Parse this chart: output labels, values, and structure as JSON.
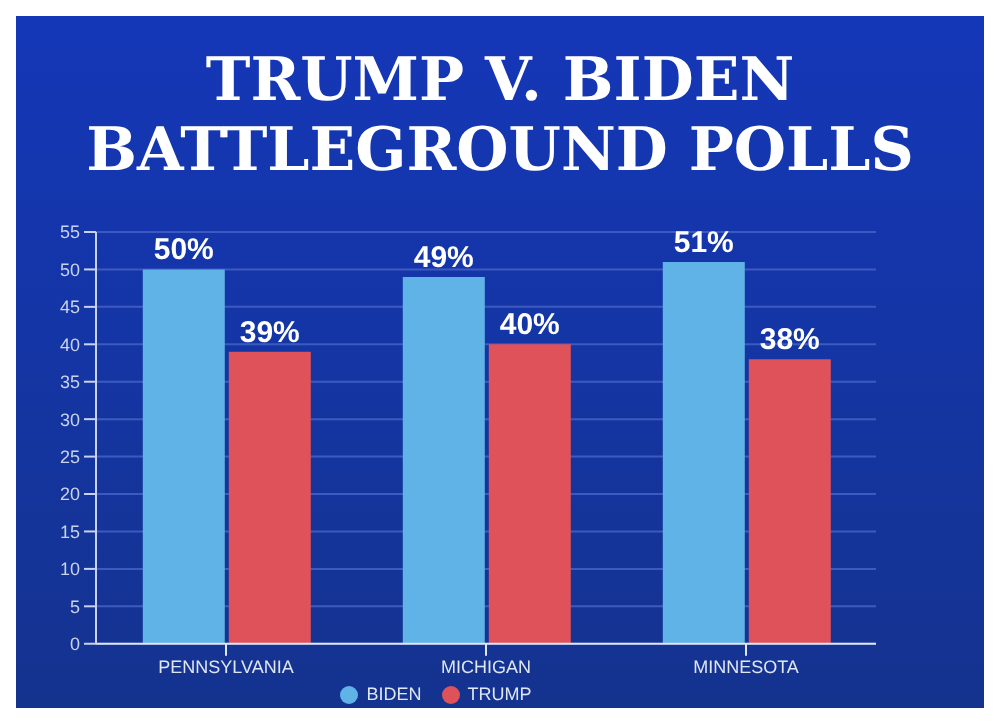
{
  "chart_data": {
    "type": "bar",
    "title": "TRUMP V. BIDEN",
    "subtitle": "BATTLEGROUND POLLS",
    "categories": [
      "PENNSYLVANIA",
      "MICHIGAN",
      "MINNESOTA"
    ],
    "series": [
      {
        "name": "BIDEN",
        "color": "#5fb3e6",
        "values": [
          50,
          49,
          51
        ],
        "value_labels": [
          "50%",
          "49%",
          "51%"
        ]
      },
      {
        "name": "TRUMP",
        "color": "#e0525a",
        "values": [
          39,
          40,
          38
        ],
        "value_labels": [
          "39%",
          "40%",
          "38%"
        ]
      }
    ],
    "ylim": [
      0,
      55
    ],
    "yticks": [
      0,
      5,
      10,
      15,
      20,
      25,
      30,
      35,
      40,
      45,
      50,
      55
    ],
    "grid": "y",
    "legend": "bottom"
  }
}
